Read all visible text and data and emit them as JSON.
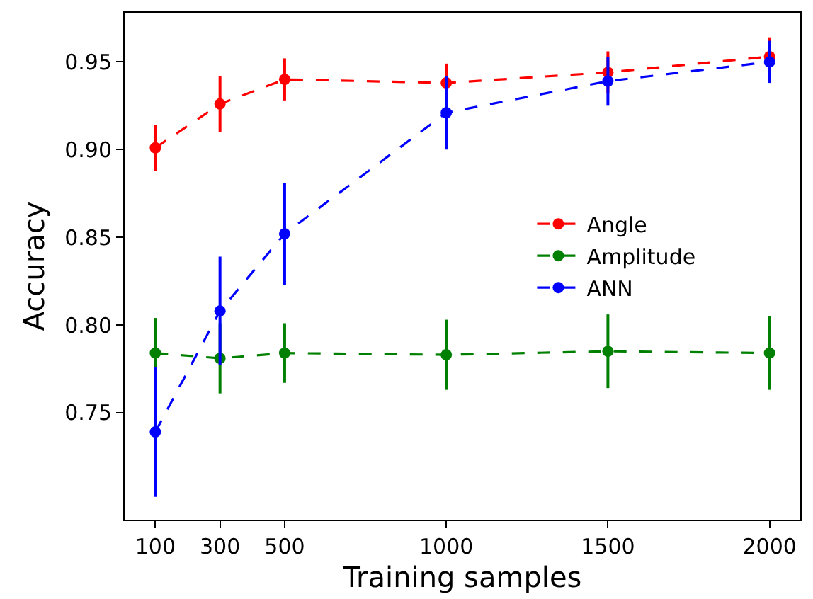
{
  "chart_data": {
    "type": "line",
    "xlabel": "Training samples",
    "ylabel": "Accuracy",
    "x": [
      100,
      300,
      500,
      1000,
      1500,
      2000
    ],
    "xlim": [
      5,
      2095
    ],
    "xticks": [
      100,
      300,
      500,
      1000,
      1500,
      2000
    ],
    "ylim": [
      0.689,
      0.978
    ],
    "yticks": [
      {
        "value": 0.75,
        "label": "0.75"
      },
      {
        "value": 0.8,
        "label": "0.80"
      },
      {
        "value": 0.85,
        "label": "0.85"
      },
      {
        "value": 0.9,
        "label": "0.90"
      },
      {
        "value": 0.95,
        "label": "0.95"
      }
    ],
    "grid": false,
    "legend": "right",
    "marker": "circle",
    "line_style": "dashed",
    "series": [
      {
        "name": "Angle",
        "color": "#ff0000",
        "values": [
          0.901,
          0.926,
          0.94,
          0.938,
          0.944,
          0.953
        ],
        "errors": [
          0.013,
          0.016,
          0.012,
          0.011,
          0.012,
          0.011
        ]
      },
      {
        "name": "Amplitude",
        "color": "#008000",
        "values": [
          0.784,
          0.781,
          0.784,
          0.783,
          0.785,
          0.784
        ],
        "errors": [
          0.02,
          0.02,
          0.017,
          0.02,
          0.021,
          0.021
        ]
      },
      {
        "name": "ANN",
        "color": "#0000ff",
        "values": [
          0.739,
          0.808,
          0.852,
          0.921,
          0.939,
          0.95
        ],
        "errors": [
          0.037,
          0.031,
          0.029,
          0.021,
          0.014,
          0.012
        ]
      }
    ]
  }
}
